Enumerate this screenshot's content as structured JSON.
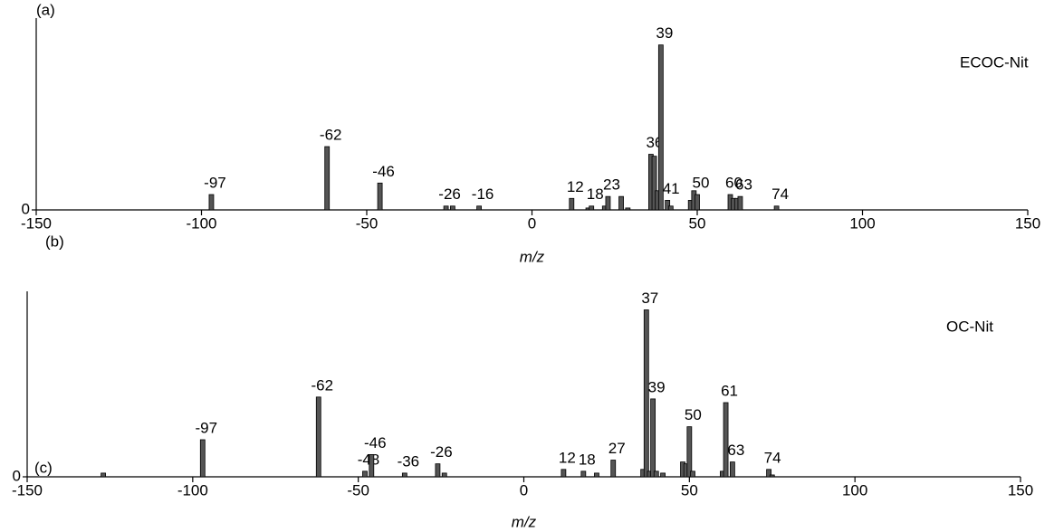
{
  "chart_data": [
    {
      "type": "bar",
      "panel_label": "(a)",
      "series_name": "ECOC-Nit",
      "x_label": "m/z",
      "color": "#555555",
      "x": [
        -97,
        -62,
        -46,
        -26,
        -24,
        -16,
        12,
        17,
        18,
        22,
        23,
        27,
        29,
        36,
        37,
        38,
        39,
        41,
        42,
        48,
        49,
        50,
        60,
        61,
        62,
        63,
        74
      ],
      "values": [
        8,
        33,
        14,
        2,
        2,
        2,
        6,
        1,
        2,
        2,
        7,
        7,
        1,
        29,
        28,
        10,
        86,
        5,
        2,
        5,
        10,
        8,
        8,
        6,
        6,
        7,
        2
      ],
      "label_x": [
        true,
        true,
        true,
        true,
        false,
        true,
        true,
        false,
        true,
        false,
        true,
        false,
        false,
        true,
        false,
        false,
        true,
        true,
        false,
        false,
        false,
        true,
        true,
        false,
        false,
        true,
        true
      ],
      "xlim": [
        -150,
        150
      ],
      "xticks": [
        -150,
        -100,
        -50,
        0,
        50,
        100,
        150
      ],
      "ylim": [
        0,
        100
      ],
      "yticks": [
        0
      ]
    },
    {
      "type": "bar",
      "panel_label": "(b)",
      "corner_label": "(c)",
      "series_name": "OC-Nit",
      "x_label": "m/z",
      "color": "#555555",
      "x": [
        -127,
        -97,
        -62,
        -48,
        -46,
        -36,
        -26,
        -24,
        12,
        18,
        22,
        27,
        36,
        37,
        38,
        39,
        40,
        42,
        48,
        49,
        50,
        51,
        60,
        61,
        63,
        74,
        75
      ],
      "values": [
        2,
        20,
        43,
        3,
        12,
        2,
        7,
        2,
        4,
        3,
        2,
        9,
        4,
        90,
        3,
        42,
        3,
        2,
        8,
        7,
        27,
        3,
        3,
        40,
        8,
        4,
        1
      ],
      "label_x": [
        false,
        true,
        true,
        true,
        true,
        true,
        true,
        false,
        true,
        true,
        false,
        true,
        false,
        true,
        false,
        true,
        false,
        false,
        false,
        false,
        true,
        false,
        false,
        true,
        true,
        true,
        false
      ],
      "xlim": [
        -150,
        150
      ],
      "xticks": [
        -150,
        -100,
        -50,
        0,
        50,
        100,
        150
      ],
      "ylim": [
        0,
        100
      ],
      "yticks": [
        0
      ]
    }
  ]
}
